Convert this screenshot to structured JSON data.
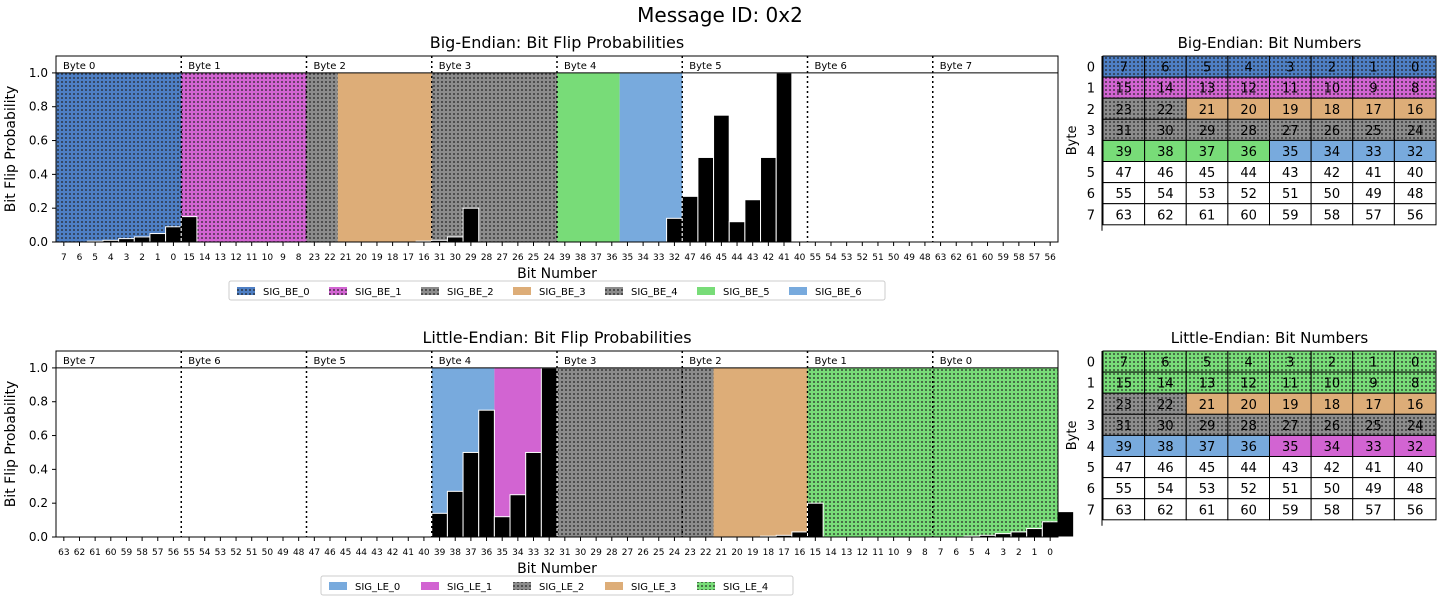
{
  "figure_title": "Message ID: 0x2",
  "colors": {
    "blue": "#4e7fc4",
    "magenta": "#d264d2",
    "gray": "#8c8c8c",
    "tan": "#ddad78",
    "green": "#78dc78",
    "lightblue": "#78aadd",
    "black": "#000000"
  },
  "chart_data": [
    {
      "type": "bar",
      "title": "Big-Endian: Bit Flip Probabilities",
      "xlabel": "Bit Number",
      "ylabel": "Bit Flip Probability",
      "ylim": [
        0,
        1.1
      ],
      "yticks": [
        0.0,
        0.2,
        0.4,
        0.6,
        0.8,
        1.0
      ],
      "byte_labels": [
        "Byte 0",
        "Byte 1",
        "Byte 2",
        "Byte 3",
        "Byte 4",
        "Byte 5",
        "Byte 6",
        "Byte 7"
      ],
      "bit_order": [
        7,
        6,
        5,
        4,
        3,
        2,
        1,
        0,
        15,
        14,
        13,
        12,
        11,
        10,
        9,
        8,
        23,
        22,
        21,
        20,
        19,
        18,
        17,
        16,
        31,
        30,
        29,
        28,
        27,
        26,
        25,
        24,
        39,
        38,
        37,
        36,
        35,
        34,
        33,
        32,
        47,
        46,
        45,
        44,
        43,
        42,
        41,
        40,
        55,
        54,
        53,
        52,
        51,
        50,
        49,
        48,
        63,
        62,
        61,
        60,
        59,
        58,
        57,
        56
      ],
      "values": [
        0.0,
        0.0,
        0.005,
        0.01,
        0.02,
        0.03,
        0.05,
        0.09,
        0.15,
        0,
        0,
        0,
        0,
        0,
        0,
        0,
        0,
        0,
        0,
        0,
        0,
        0,
        0,
        0.005,
        0.01,
        0.03,
        0.2,
        0,
        0,
        0,
        0,
        0,
        0,
        0,
        0,
        0,
        0,
        0,
        0,
        0.14,
        0.27,
        0.5,
        0.75,
        0.12,
        0.25,
        0.5,
        1.0,
        0,
        0,
        0,
        0,
        0,
        0,
        0,
        0,
        0,
        0,
        0,
        0,
        0,
        0,
        0,
        0,
        0
      ],
      "signals": [
        {
          "name": "SIG_BE_0",
          "start": 0,
          "end": 8,
          "color": "blue",
          "hatch": true
        },
        {
          "name": "SIG_BE_1",
          "start": 8,
          "end": 16,
          "color": "magenta",
          "hatch": true
        },
        {
          "name": "SIG_BE_2",
          "start": 16,
          "end": 18,
          "color": "gray",
          "hatch": true
        },
        {
          "name": "SIG_BE_3",
          "start": 18,
          "end": 24,
          "color": "tan",
          "hatch": false
        },
        {
          "name": "SIG_BE_4",
          "start": 24,
          "end": 32,
          "color": "gray",
          "hatch": true
        },
        {
          "name": "SIG_BE_5",
          "start": 32,
          "end": 36,
          "color": "green",
          "hatch": false
        },
        {
          "name": "SIG_BE_6",
          "start": 36,
          "end": 40,
          "color": "lightblue",
          "hatch": false
        }
      ],
      "legend": "bottom-center"
    },
    {
      "type": "bar",
      "title": "Little-Endian: Bit Flip Probabilities",
      "xlabel": "Bit Number",
      "ylabel": "Bit Flip Probability",
      "ylim": [
        0,
        1.1
      ],
      "yticks": [
        0.0,
        0.2,
        0.4,
        0.6,
        0.8,
        1.0
      ],
      "byte_labels": [
        "Byte 7",
        "Byte 6",
        "Byte 5",
        "Byte 4",
        "Byte 3",
        "Byte 2",
        "Byte 1",
        "Byte 0"
      ],
      "bit_order": [
        63,
        62,
        61,
        60,
        59,
        58,
        57,
        56,
        55,
        54,
        53,
        52,
        51,
        50,
        49,
        48,
        47,
        46,
        45,
        44,
        43,
        42,
        41,
        40,
        39,
        38,
        37,
        36,
        35,
        34,
        33,
        32,
        31,
        30,
        29,
        28,
        27,
        26,
        25,
        24,
        23,
        22,
        21,
        20,
        19,
        18,
        17,
        16,
        15,
        14,
        13,
        12,
        11,
        10,
        9,
        8,
        7,
        6,
        5,
        4,
        3,
        2,
        1,
        0
      ],
      "values": [
        0,
        0,
        0,
        0,
        0,
        0,
        0,
        0,
        0,
        0,
        0,
        0,
        0,
        0,
        0,
        0,
        0,
        0,
        0,
        0,
        0,
        0,
        0,
        0,
        0.14,
        0.27,
        0.5,
        0.75,
        0.12,
        0.25,
        0.5,
        1.0,
        0,
        0,
        0,
        0,
        0,
        0,
        0,
        0,
        0,
        0,
        0,
        0,
        0,
        0.005,
        0.01,
        0.03,
        0.2,
        0,
        0,
        0,
        0,
        0,
        0,
        0,
        0,
        0.0,
        0.005,
        0.01,
        0.02,
        0.03,
        0.05,
        0.09,
        0.15
      ],
      "signals": [
        {
          "name": "SIG_LE_0",
          "start": 24,
          "end": 28,
          "color": "lightblue",
          "hatch": false
        },
        {
          "name": "SIG_LE_1",
          "start": 28,
          "end": 32,
          "color": "magenta",
          "hatch": false
        },
        {
          "name": "SIG_LE_2",
          "start": 32,
          "end": 42,
          "color": "gray",
          "hatch": true
        },
        {
          "name": "SIG_LE_3",
          "start": 42,
          "end": 48,
          "color": "tan",
          "hatch": false
        },
        {
          "name": "SIG_LE_4",
          "start": 48,
          "end": 64,
          "color": "green",
          "hatch": true
        }
      ],
      "legend": "bottom-center"
    },
    {
      "type": "table",
      "title": "Big-Endian: Bit Numbers",
      "ylabel": "Byte",
      "row_labels": [
        "0",
        "1",
        "2",
        "3",
        "4",
        "5",
        "6",
        "7"
      ],
      "cells": [
        [
          "7",
          "6",
          "5",
          "4",
          "3",
          "2",
          "1",
          "0"
        ],
        [
          "15",
          "14",
          "13",
          "12",
          "11",
          "10",
          "9",
          "8"
        ],
        [
          "23",
          "22",
          "21",
          "20",
          "19",
          "18",
          "17",
          "16"
        ],
        [
          "31",
          "30",
          "29",
          "28",
          "27",
          "26",
          "25",
          "24"
        ],
        [
          "39",
          "38",
          "37",
          "36",
          "35",
          "34",
          "33",
          "32"
        ],
        [
          "47",
          "46",
          "45",
          "44",
          "43",
          "42",
          "41",
          "40"
        ],
        [
          "55",
          "54",
          "53",
          "52",
          "51",
          "50",
          "49",
          "48"
        ],
        [
          "63",
          "62",
          "61",
          "60",
          "59",
          "58",
          "57",
          "56"
        ]
      ],
      "cell_colors": [
        [
          "blue",
          "blue",
          "blue",
          "blue",
          "blue",
          "blue",
          "blue",
          "blue"
        ],
        [
          "magenta",
          "magenta",
          "magenta",
          "magenta",
          "magenta",
          "magenta",
          "magenta",
          "magenta"
        ],
        [
          "gray",
          "gray",
          "tan",
          "tan",
          "tan",
          "tan",
          "tan",
          "tan"
        ],
        [
          "gray",
          "gray",
          "gray",
          "gray",
          "gray",
          "gray",
          "gray",
          "gray"
        ],
        [
          "green",
          "green",
          "green",
          "green",
          "lightblue",
          "lightblue",
          "lightblue",
          "lightblue"
        ],
        [
          "",
          "",
          "",
          "",
          "",
          "",
          "",
          ""
        ],
        [
          "",
          "",
          "",
          "",
          "",
          "",
          "",
          ""
        ],
        [
          "",
          "",
          "",
          "",
          "",
          "",
          "",
          ""
        ]
      ],
      "cell_hatch": [
        [
          true,
          true,
          true,
          true,
          true,
          true,
          true,
          true
        ],
        [
          true,
          true,
          true,
          true,
          true,
          true,
          true,
          true
        ],
        [
          true,
          true,
          false,
          false,
          false,
          false,
          false,
          false
        ],
        [
          true,
          true,
          true,
          true,
          true,
          true,
          true,
          true
        ],
        [
          false,
          false,
          false,
          false,
          false,
          false,
          false,
          false
        ],
        [
          false,
          false,
          false,
          false,
          false,
          false,
          false,
          false
        ],
        [
          false,
          false,
          false,
          false,
          false,
          false,
          false,
          false
        ],
        [
          false,
          false,
          false,
          false,
          false,
          false,
          false,
          false
        ]
      ]
    },
    {
      "type": "table",
      "title": "Little-Endian: Bit Numbers",
      "ylabel": "Byte",
      "row_labels": [
        "0",
        "1",
        "2",
        "3",
        "4",
        "5",
        "6",
        "7"
      ],
      "cells": [
        [
          "7",
          "6",
          "5",
          "4",
          "3",
          "2",
          "1",
          "0"
        ],
        [
          "15",
          "14",
          "13",
          "12",
          "11",
          "10",
          "9",
          "8"
        ],
        [
          "23",
          "22",
          "21",
          "20",
          "19",
          "18",
          "17",
          "16"
        ],
        [
          "31",
          "30",
          "29",
          "28",
          "27",
          "26",
          "25",
          "24"
        ],
        [
          "39",
          "38",
          "37",
          "36",
          "35",
          "34",
          "33",
          "32"
        ],
        [
          "47",
          "46",
          "45",
          "44",
          "43",
          "42",
          "41",
          "40"
        ],
        [
          "55",
          "54",
          "53",
          "52",
          "51",
          "50",
          "49",
          "48"
        ],
        [
          "63",
          "62",
          "61",
          "60",
          "59",
          "58",
          "57",
          "56"
        ]
      ],
      "cell_colors": [
        [
          "green",
          "green",
          "green",
          "green",
          "green",
          "green",
          "green",
          "green"
        ],
        [
          "green",
          "green",
          "green",
          "green",
          "green",
          "green",
          "green",
          "green"
        ],
        [
          "gray",
          "gray",
          "tan",
          "tan",
          "tan",
          "tan",
          "tan",
          "tan"
        ],
        [
          "gray",
          "gray",
          "gray",
          "gray",
          "gray",
          "gray",
          "gray",
          "gray"
        ],
        [
          "lightblue",
          "lightblue",
          "lightblue",
          "lightblue",
          "magenta",
          "magenta",
          "magenta",
          "magenta"
        ],
        [
          "",
          "",
          "",
          "",
          "",
          "",
          "",
          ""
        ],
        [
          "",
          "",
          "",
          "",
          "",
          "",
          "",
          ""
        ],
        [
          "",
          "",
          "",
          "",
          "",
          "",
          "",
          ""
        ]
      ],
      "cell_hatch": [
        [
          true,
          true,
          true,
          true,
          true,
          true,
          true,
          true
        ],
        [
          true,
          true,
          true,
          true,
          true,
          true,
          true,
          true
        ],
        [
          true,
          true,
          false,
          false,
          false,
          false,
          false,
          false
        ],
        [
          true,
          true,
          true,
          true,
          true,
          true,
          true,
          true
        ],
        [
          false,
          false,
          false,
          false,
          false,
          false,
          false,
          false
        ],
        [
          false,
          false,
          false,
          false,
          false,
          false,
          false,
          false
        ],
        [
          false,
          false,
          false,
          false,
          false,
          false,
          false,
          false
        ],
        [
          false,
          false,
          false,
          false,
          false,
          false,
          false,
          false
        ]
      ]
    }
  ]
}
